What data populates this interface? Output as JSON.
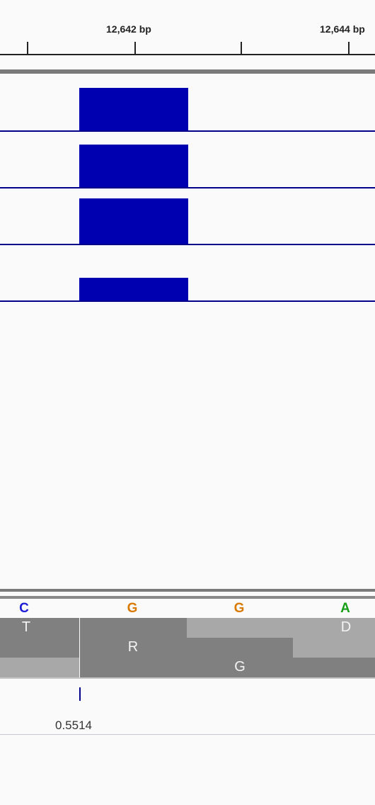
{
  "ruler": {
    "labels": [
      "12,642 bp",
      "12,644 bp"
    ]
  },
  "sequence": {
    "bases": [
      {
        "letter": "C",
        "color": "#1d1dd6"
      },
      {
        "letter": "G",
        "color": "#d97a00"
      },
      {
        "letter": "G",
        "color": "#d97a00"
      },
      {
        "letter": "A",
        "color": "#17a017"
      }
    ]
  },
  "translation": {
    "labels": [
      "T",
      "R",
      "G",
      "D"
    ]
  },
  "value_track": {
    "value": "0.5514"
  },
  "colors": {
    "feature": "#0000b0",
    "track_line": "#00008a",
    "aa_dark": "#808080",
    "aa_light": "#a8a8a8"
  }
}
